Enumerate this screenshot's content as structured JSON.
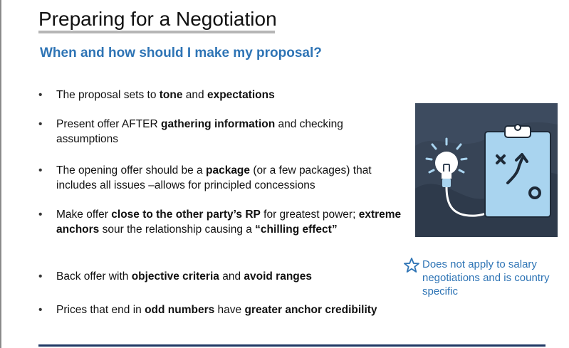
{
  "slide": {
    "title": "Preparing for a Negotiation",
    "subtitle": "When and how should I make my proposal?"
  },
  "bullets": [
    {
      "segments": [
        {
          "t": "The proposal sets to ",
          "b": false
        },
        {
          "t": "tone",
          "b": true
        },
        {
          "t": " and ",
          "b": false
        },
        {
          "t": "expectations",
          "b": true
        }
      ]
    },
    {
      "segments": [
        {
          "t": "Present offer AFTER ",
          "b": false
        },
        {
          "t": "gathering information",
          "b": true
        },
        {
          "t": " and checking assumptions",
          "b": false
        }
      ]
    },
    {
      "segments": [
        {
          "t": "The opening offer should be a ",
          "b": false
        },
        {
          "t": "package",
          "b": true
        },
        {
          "t": " (or a few packages) that includes all issues –allows for principled concessions",
          "b": false
        }
      ]
    },
    {
      "segments": [
        {
          "t": "Make offer ",
          "b": false
        },
        {
          "t": "close to the other party’s RP",
          "b": true
        },
        {
          "t": " for greatest power; ",
          "b": false
        },
        {
          "t": "extreme anchors",
          "b": true
        },
        {
          "t": " sour the relationship causing a ",
          "b": false
        },
        {
          "t": "“chilling effect”",
          "b": true
        }
      ]
    },
    {
      "segments": [
        {
          "t": "Back offer with ",
          "b": false
        },
        {
          "t": "objective criteria",
          "b": true
        },
        {
          "t": " and ",
          "b": false
        },
        {
          "t": "avoid ranges",
          "b": true
        }
      ]
    },
    {
      "segments": [
        {
          "t": "Prices that end in ",
          "b": false
        },
        {
          "t": "odd numbers",
          "b": true
        },
        {
          "t": " have ",
          "b": false
        },
        {
          "t": "greater anchor credibility",
          "b": true
        }
      ]
    }
  ],
  "bullet_marker": "•",
  "footnote": {
    "icon": "star-icon",
    "text": "Does not apply to salary negotiations and is country specific"
  },
  "illustration": {
    "icons": [
      "lightbulb-icon",
      "clipboard-strategy-icon"
    ]
  },
  "colors": {
    "accent": "#2e74b5",
    "navy": "#1f3864",
    "illustration_bg": "#374456",
    "illustration_light": "#a9d4ef"
  }
}
